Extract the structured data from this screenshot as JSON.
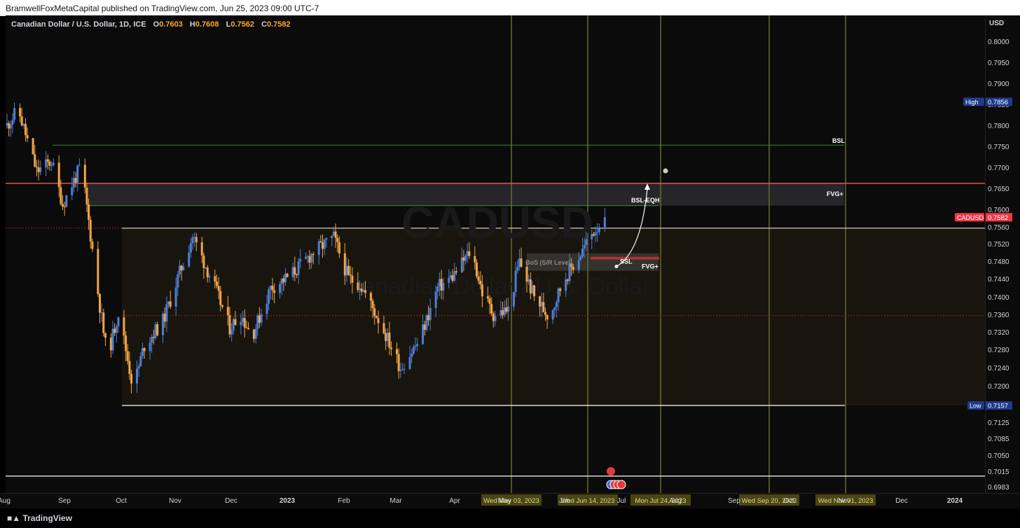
{
  "publisher_line": "BramwellFoxMetaCapital published on TradingView.com, Jun 25, 2023 09:00 UTC-7",
  "symbol": {
    "description": "Canadian Dollar / U.S. Dollar, 1D, ICE",
    "open_label": "O",
    "open": "0.7603",
    "high_label": "H",
    "high": "0.7608",
    "low_label": "L",
    "low": "0.7562",
    "close_label": "C",
    "close": "0.7582"
  },
  "currency": "USD",
  "watermark": {
    "ticker": "CADUSD",
    "name": "Canadian Dollar / U.S. Dollar"
  },
  "footer": {
    "brand": "TradingView"
  },
  "chart_data": {
    "type": "candlestick",
    "title": "Canadian Dollar / U.S. Dollar, 1D, ICE",
    "y_ticks": [
      "0.8000",
      "0.7950",
      "0.7900",
      "0.7850",
      "0.7800",
      "0.7750",
      "0.7700",
      "0.7650",
      "0.7600",
      "0.7560",
      "0.7520",
      "0.7480",
      "0.7440",
      "0.7400",
      "0.7360",
      "0.7320",
      "0.7280",
      "0.7240",
      "0.7200",
      "0.7157",
      "0.7125",
      "0.7085",
      "0.7050",
      "0.7015",
      "0.6983"
    ],
    "x_ticks": [
      "Aug",
      "Sep",
      "Oct",
      "Nov",
      "Dec",
      "2023",
      "Feb",
      "Mar",
      "Apr",
      "May",
      "Jun",
      "Jul",
      "Aug",
      "Sep",
      "Oct",
      "Nov",
      "Dec",
      "2024"
    ],
    "ylim": [
      0.6955,
      0.804
    ],
    "colors": {
      "up": "#4c7fd6",
      "down": "#f3a545",
      "current": "#f23645",
      "level_tag": "#1e3a8a"
    },
    "price_tags": [
      {
        "label": "High",
        "value": "0.7856"
      },
      {
        "label": "CADUSD",
        "value": "0.7582"
      },
      {
        "label": "Low",
        "value": "0.7157"
      }
    ],
    "date_tags": [
      "Wed May 03, 2023",
      "Wed Jun 14, 2023",
      "Mon Jul 24, 2023",
      "Wed Sep 20, 2023",
      "Wed Nov 01, 2023"
    ],
    "annotations": [
      "BSL",
      "FVG+",
      "BSL-EQH",
      "SSL",
      "FVG+",
      "BoS (S/R Level)"
    ],
    "waypoints": [
      {
        "d": 0,
        "c": 0.78
      },
      {
        "d": 6,
        "c": 0.7838
      },
      {
        "d": 16,
        "c": 0.769
      },
      {
        "d": 24,
        "c": 0.7715
      },
      {
        "d": 30,
        "c": 0.7612
      },
      {
        "d": 40,
        "c": 0.7706
      },
      {
        "d": 48,
        "c": 0.744
      },
      {
        "d": 54,
        "c": 0.726
      },
      {
        "d": 60,
        "c": 0.7365
      },
      {
        "d": 68,
        "c": 0.7195
      },
      {
        "d": 74,
        "c": 0.729
      },
      {
        "d": 84,
        "c": 0.7345
      },
      {
        "d": 100,
        "c": 0.7538
      },
      {
        "d": 112,
        "c": 0.742
      },
      {
        "d": 120,
        "c": 0.733
      },
      {
        "d": 126,
        "c": 0.736
      },
      {
        "d": 132,
        "c": 0.731
      },
      {
        "d": 142,
        "c": 0.742
      },
      {
        "d": 152,
        "c": 0.7445
      },
      {
        "d": 165,
        "c": 0.75
      },
      {
        "d": 176,
        "c": 0.7535
      },
      {
        "d": 184,
        "c": 0.744
      },
      {
        "d": 190,
        "c": 0.743
      },
      {
        "d": 200,
        "c": 0.735
      },
      {
        "d": 212,
        "c": 0.724
      },
      {
        "d": 222,
        "c": 0.73
      },
      {
        "d": 232,
        "c": 0.742
      },
      {
        "d": 240,
        "c": 0.7445
      },
      {
        "d": 250,
        "c": 0.7505
      },
      {
        "d": 256,
        "c": 0.741
      },
      {
        "d": 262,
        "c": 0.736
      },
      {
        "d": 270,
        "c": 0.737
      },
      {
        "d": 276,
        "c": 0.748
      },
      {
        "d": 284,
        "c": 0.74
      },
      {
        "d": 292,
        "c": 0.7355
      },
      {
        "d": 300,
        "c": 0.744
      },
      {
        "d": 308,
        "c": 0.749
      },
      {
        "d": 316,
        "c": 0.755
      },
      {
        "d": 322,
        "c": 0.7582
      }
    ]
  }
}
